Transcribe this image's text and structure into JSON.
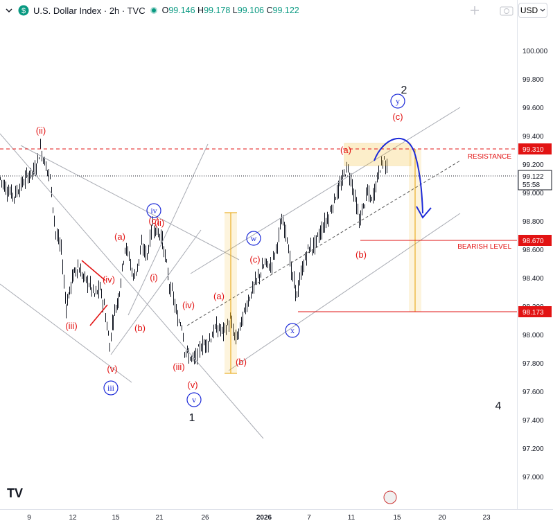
{
  "header": {
    "symbol": "U.S. Dollar Index · 2h · TVC",
    "open_label": "O",
    "open": "99.146",
    "high_label": "H",
    "high": "99.178",
    "low_label": "L",
    "low": "99.106",
    "close_label": "C",
    "close": "99.122",
    "currency": "USD"
  },
  "colors": {
    "wave_red": "#e21313",
    "wave_blue": "#1c2ad8",
    "up": "#089981",
    "down": "#131722",
    "level_red": "#e21313",
    "box": "#f6c343"
  },
  "chart_data": {
    "type": "candlestick",
    "y_range": [
      96.85,
      100.2
    ],
    "y_ticks": [
      "100.000",
      "99.800",
      "99.600",
      "99.400",
      "99.200",
      "99.000",
      "98.800",
      "98.600",
      "98.400",
      "98.200",
      "98.000",
      "97.800",
      "97.600",
      "97.400",
      "97.200",
      "97.000"
    ],
    "x_ticks": [
      "9",
      "12",
      "15",
      "21",
      "26",
      "2026",
      "7",
      "11",
      "15",
      "20",
      "23"
    ],
    "price_labels": [
      {
        "value": "99.310",
        "text": "RESISTANCE"
      },
      {
        "value": "99.122",
        "sub": "55:58"
      },
      {
        "value": "98.670",
        "text": "BEARISH LEVEL"
      },
      {
        "value": "98.173",
        "text": ""
      }
    ],
    "price_path": [
      [
        0,
        99.1
      ],
      [
        10,
        99.02
      ],
      [
        20,
        98.98
      ],
      [
        30,
        99.05
      ],
      [
        40,
        99.12
      ],
      [
        50,
        99.16
      ],
      [
        58,
        99.31
      ],
      [
        64,
        99.22
      ],
      [
        72,
        99.1
      ],
      [
        80,
        98.72
      ],
      [
        88,
        98.6
      ],
      [
        95,
        98.2
      ],
      [
        100,
        98.3
      ],
      [
        105,
        98.42
      ],
      [
        112,
        98.48
      ],
      [
        120,
        98.4
      ],
      [
        128,
        98.36
      ],
      [
        136,
        98.28
      ],
      [
        144,
        98.32
      ],
      [
        150,
        98.2
      ],
      [
        158,
        97.92
      ],
      [
        163,
        98.12
      ],
      [
        170,
        98.25
      ],
      [
        176,
        98.46
      ],
      [
        180,
        98.62
      ],
      [
        186,
        98.55
      ],
      [
        192,
        98.4
      ],
      [
        198,
        98.48
      ],
      [
        204,
        98.62
      ],
      [
        212,
        98.56
      ],
      [
        220,
        98.78
      ],
      [
        226,
        98.72
      ],
      [
        232,
        98.7
      ],
      [
        238,
        98.55
      ],
      [
        244,
        98.35
      ],
      [
        250,
        98.26
      ],
      [
        256,
        98.1
      ],
      [
        262,
        98.08
      ],
      [
        266,
        97.9
      ],
      [
        272,
        97.85
      ],
      [
        280,
        97.82
      ],
      [
        290,
        97.92
      ],
      [
        300,
        97.95
      ],
      [
        312,
        98.05
      ],
      [
        322,
        98.02
      ],
      [
        332,
        98.1
      ],
      [
        340,
        97.96
      ],
      [
        348,
        98.08
      ],
      [
        356,
        98.22
      ],
      [
        366,
        98.34
      ],
      [
        374,
        98.42
      ],
      [
        382,
        98.5
      ],
      [
        390,
        98.48
      ],
      [
        398,
        98.6
      ],
      [
        406,
        98.8
      ],
      [
        414,
        98.7
      ],
      [
        420,
        98.44
      ],
      [
        428,
        98.28
      ],
      [
        436,
        98.46
      ],
      [
        444,
        98.6
      ],
      [
        452,
        98.62
      ],
      [
        460,
        98.7
      ],
      [
        468,
        98.78
      ],
      [
        476,
        98.86
      ],
      [
        484,
        98.98
      ],
      [
        492,
        99.06
      ],
      [
        500,
        99.18
      ],
      [
        506,
        99.1
      ],
      [
        512,
        98.96
      ],
      [
        518,
        98.8
      ],
      [
        524,
        98.9
      ],
      [
        530,
        99.0
      ],
      [
        536,
        98.94
      ],
      [
        542,
        99.06
      ],
      [
        548,
        99.18
      ],
      [
        554,
        99.24
      ],
      [
        560,
        99.14
      ]
    ],
    "wave_labels": [
      {
        "t": "(ii)",
        "c": "red"
      },
      {
        "t": "(iii)",
        "c": "red"
      },
      {
        "t": "(iv)",
        "c": "red"
      },
      {
        "t": "(v)",
        "c": "red"
      },
      {
        "t": "iii",
        "c": "blue",
        "circle": true
      },
      {
        "t": "(a)",
        "c": "red"
      },
      {
        "t": "(b)",
        "c": "red"
      },
      {
        "t": "(i)",
        "c": "red"
      },
      {
        "t": "(ii)",
        "c": "red"
      },
      {
        "t": "(c)",
        "c": "red"
      },
      {
        "t": "iv",
        "c": "blue",
        "circle": true
      },
      {
        "t": "(iv)",
        "c": "red"
      },
      {
        "t": "(iii)",
        "c": "red"
      },
      {
        "t": "(v)",
        "c": "red"
      },
      {
        "t": "v",
        "c": "blue",
        "circle": true
      },
      {
        "t": "1",
        "c": "black"
      },
      {
        "t": "(a)",
        "c": "red"
      },
      {
        "t": "(b)",
        "c": "red"
      },
      {
        "t": "(c)",
        "c": "red"
      },
      {
        "t": "w",
        "c": "blue",
        "circle": true
      },
      {
        "t": "x",
        "c": "blue",
        "circle": true
      },
      {
        "t": "(a)",
        "c": "red"
      },
      {
        "t": "(b)",
        "c": "red"
      },
      {
        "t": "(c)",
        "c": "red"
      },
      {
        "t": "y",
        "c": "blue",
        "circle": true
      },
      {
        "t": "2",
        "c": "black"
      },
      {
        "t": "4",
        "c": "black"
      }
    ]
  }
}
